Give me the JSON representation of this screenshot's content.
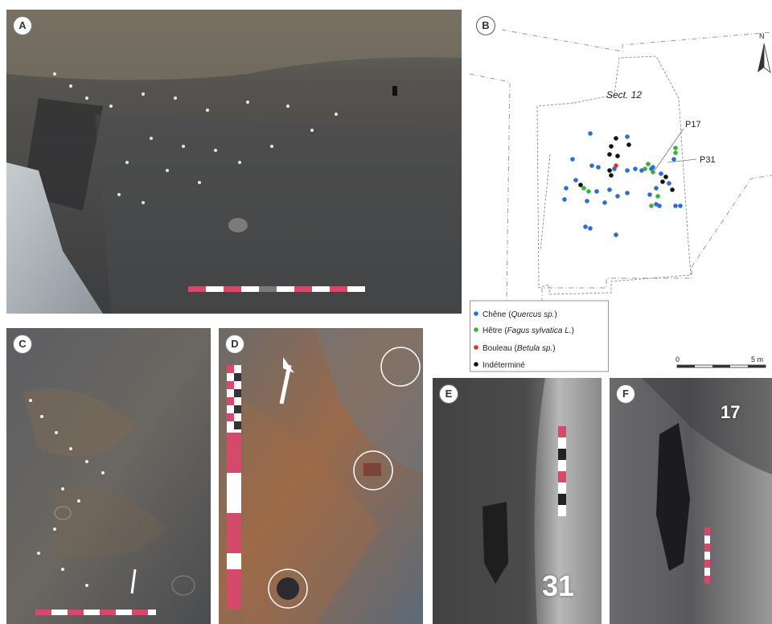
{
  "panels": {
    "a": {
      "label": "A"
    },
    "b": {
      "label": "B",
      "sector": "Sect. 12",
      "north": "N",
      "callouts": [
        "P17",
        "P31"
      ],
      "scale": {
        "start": "0",
        "end": "5 m"
      },
      "legend": [
        {
          "label": "Chêne (",
          "italic": "Quercus sp.",
          "close": ")",
          "color": "#2a6ed3"
        },
        {
          "label": "Hêtre (",
          "italic": "Fagus sylvatica L.",
          "close": ")",
          "color": "#3fae3f"
        },
        {
          "label": "Bouleau (",
          "italic": "Betula sp.",
          "close": ")",
          "color": "#e03030"
        },
        {
          "label": "Indéterminé",
          "italic": "",
          "close": "",
          "color": "#111111"
        }
      ]
    },
    "c": {
      "label": "C"
    },
    "d": {
      "label": "D"
    },
    "e": {
      "label": "E",
      "stake_number": "31"
    },
    "f": {
      "label": "F",
      "stake_number": "17"
    }
  }
}
